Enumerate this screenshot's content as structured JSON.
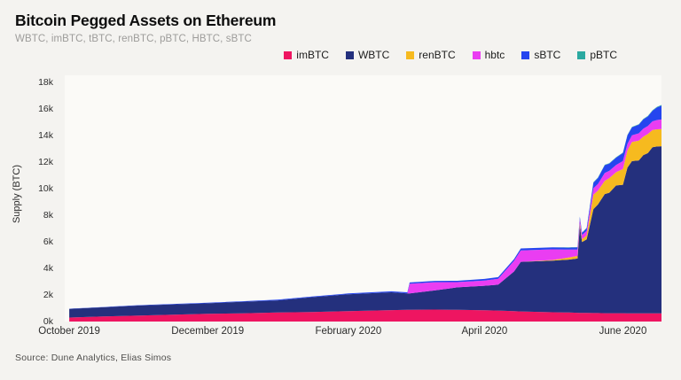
{
  "header": {
    "title": "Bitcoin Pegged Assets on Ethereum",
    "subtitle": "WBTC, imBTC, tBTC, renBTC, pBTC, HBTC, sBTC"
  },
  "source_note": "Source: Dune Analytics, Elias Simos",
  "colors": {
    "background": "#f4f3f0",
    "plot_background": "#fbfaf7"
  },
  "chart_data": {
    "type": "area",
    "stacked": true,
    "title": "Bitcoin Pegged Assets on Ethereum",
    "xlabel": "",
    "ylabel": "Supply (BTC)",
    "ylim": [
      0,
      18000
    ],
    "grid": false,
    "legend_position": "top-right",
    "x_domain": [
      "2019-09-29",
      "2020-06-18"
    ],
    "y_ticks": [
      {
        "value": 0,
        "label": "0k"
      },
      {
        "value": 2000,
        "label": "2k"
      },
      {
        "value": 4000,
        "label": "4k"
      },
      {
        "value": 6000,
        "label": "6k"
      },
      {
        "value": 8000,
        "label": "8k"
      },
      {
        "value": 10000,
        "label": "10k"
      },
      {
        "value": 12000,
        "label": "12k"
      },
      {
        "value": 14000,
        "label": "14k"
      },
      {
        "value": 16000,
        "label": "16k"
      },
      {
        "value": 18000,
        "label": "18k"
      }
    ],
    "x_ticks": [
      {
        "date": "2019-10-01",
        "label": "October 2019"
      },
      {
        "date": "2019-12-01",
        "label": "December 2019"
      },
      {
        "date": "2020-02-01",
        "label": "February 2020"
      },
      {
        "date": "2020-04-01",
        "label": "April 2020"
      },
      {
        "date": "2020-06-01",
        "label": "June 2020"
      }
    ],
    "x": [
      "2019-10-01",
      "2019-10-16",
      "2019-11-01",
      "2019-11-16",
      "2019-12-01",
      "2019-12-16",
      "2020-01-01",
      "2020-01-16",
      "2020-02-01",
      "2020-02-20",
      "2020-02-27",
      "2020-02-28",
      "2020-03-10",
      "2020-03-20",
      "2020-04-01",
      "2020-04-07",
      "2020-04-14",
      "2020-04-17",
      "2020-05-01",
      "2020-05-08",
      "2020-05-12",
      "2020-05-13",
      "2020-05-14",
      "2020-05-16",
      "2020-05-19",
      "2020-05-21",
      "2020-05-24",
      "2020-05-26",
      "2020-05-29",
      "2020-06-01",
      "2020-06-03",
      "2020-06-05",
      "2020-06-08",
      "2020-06-10",
      "2020-06-12",
      "2020-06-14",
      "2020-06-16",
      "2020-06-18"
    ],
    "series": [
      {
        "name": "imBTC",
        "color": "#ee1561",
        "values": [
          300,
          380,
          450,
          520,
          580,
          620,
          680,
          720,
          780,
          860,
          880,
          880,
          900,
          880,
          850,
          830,
          780,
          760,
          700,
          680,
          660,
          650,
          650,
          650,
          640,
          640,
          630,
          630,
          630,
          630,
          620,
          620,
          620,
          620,
          620,
          620,
          620,
          620
        ]
      },
      {
        "name": "WBTC",
        "color": "#24307d",
        "values": [
          650,
          700,
          760,
          780,
          800,
          870,
          920,
          1120,
          1280,
          1350,
          1250,
          1250,
          1450,
          1700,
          1850,
          1950,
          3000,
          3750,
          3900,
          4000,
          4100,
          6600,
          5350,
          5550,
          7850,
          8200,
          9000,
          9100,
          9650,
          9700,
          11000,
          11500,
          11550,
          11950,
          12100,
          12550,
          12600,
          12620
        ]
      },
      {
        "name": "renBTC",
        "color": "#f6ba1f",
        "values": [
          0,
          0,
          0,
          0,
          0,
          0,
          0,
          0,
          0,
          0,
          0,
          0,
          0,
          0,
          0,
          0,
          0,
          0,
          50,
          150,
          200,
          200,
          220,
          300,
          1100,
          1050,
          1000,
          1100,
          1000,
          1200,
          1300,
          1450,
          1500,
          1400,
          1450,
          1300,
          1300,
          1300
        ]
      },
      {
        "name": "hbtc",
        "color": "#ea3df2",
        "values": [
          0,
          0,
          0,
          0,
          0,
          0,
          0,
          0,
          0,
          0,
          0,
          720,
          620,
          400,
          400,
          450,
          800,
          860,
          800,
          600,
          480,
          300,
          320,
          350,
          480,
          500,
          600,
          550,
          550,
          600,
          500,
          500,
          550,
          600,
          600,
          650,
          700,
          720
        ]
      },
      {
        "name": "sBTC",
        "color": "#2545ef",
        "values": [
          20,
          20,
          30,
          30,
          40,
          40,
          50,
          50,
          60,
          70,
          80,
          100,
          100,
          100,
          120,
          120,
          140,
          150,
          150,
          150,
          160,
          160,
          160,
          200,
          420,
          450,
          580,
          550,
          550,
          600,
          650,
          600,
          650,
          700,
          720,
          800,
          950,
          1050
        ]
      },
      {
        "name": "pBTC",
        "color": "#2ba9a0",
        "values": [
          0,
          0,
          0,
          0,
          0,
          0,
          0,
          0,
          0,
          0,
          0,
          0,
          0,
          0,
          0,
          0,
          0,
          0,
          0,
          20,
          20,
          20,
          20,
          20,
          30,
          30,
          30,
          30,
          30,
          30,
          30,
          30,
          40,
          40,
          40,
          40,
          50,
          50
        ]
      }
    ]
  }
}
